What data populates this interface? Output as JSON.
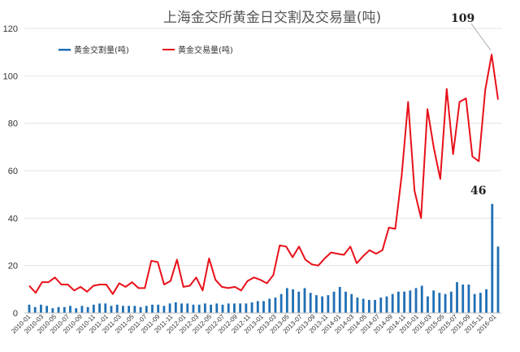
{
  "chart_data": {
    "type": "bar+line",
    "title": "上海金交所黄金日交割及交易量(吨)",
    "ylim": [
      0,
      120
    ],
    "yticks": [
      0,
      20,
      40,
      60,
      80,
      100,
      120
    ],
    "grid": "horizontal",
    "legend_position": "top-left",
    "x_tick_labels": [
      "2010-01",
      "2010-03",
      "2010-05",
      "2010-07",
      "2010-09",
      "2010-11",
      "2011-01",
      "2011-03",
      "2011-05",
      "2011-07",
      "2011-09",
      "2011-11",
      "2012-01",
      "2012-03",
      "2012-05",
      "2012-07",
      "2012-09",
      "2012-11",
      "2013-01",
      "2013-03",
      "2013-05",
      "2013-07",
      "2013-09",
      "2013-11",
      "2014-01",
      "2014-03",
      "2014-05",
      "2014-07",
      "2014-09",
      "2014-11",
      "2015-01",
      "2015-03",
      "2015-05",
      "2015-07",
      "2015-09",
      "2015-11",
      "2016-01"
    ],
    "series": [
      {
        "name": "黄金交割量(吨)",
        "kind": "bar",
        "color": "#1f6fb4",
        "values": [
          3.5,
          2.5,
          3.5,
          3.0,
          2.0,
          2.5,
          2.5,
          3.0,
          2.0,
          3.0,
          2.5,
          3.5,
          4.0,
          4.0,
          3.0,
          3.5,
          3.0,
          3.0,
          3.0,
          2.5,
          3.0,
          3.5,
          3.5,
          3.0,
          4.0,
          4.5,
          4.0,
          4.0,
          3.5,
          3.5,
          4.0,
          3.5,
          4.0,
          3.5,
          4.0,
          4.0,
          4.0,
          4.0,
          4.5,
          5.0,
          5.0,
          6.0,
          6.5,
          8.0,
          10.5,
          10.0,
          9.0,
          10.5,
          8.5,
          7.5,
          7.0,
          7.5,
          9.0,
          11.0,
          9.0,
          8.0,
          6.5,
          6.0,
          5.5,
          5.5,
          6.5,
          7.0,
          8.0,
          9.0,
          9.0,
          9.5,
          10.5,
          11.5,
          7.0,
          9.5,
          8.5,
          8.0,
          9.0,
          13.0,
          12.0,
          12.0,
          8.0,
          8.5,
          10.0,
          46.0,
          28.0
        ]
      },
      {
        "name": "黄金交易量(吨)",
        "kind": "line",
        "color": "#e8101a",
        "values": [
          11.5,
          8.5,
          13.0,
          13.0,
          15.0,
          12.0,
          12.0,
          9.5,
          11.0,
          9.0,
          11.5,
          12.0,
          12.0,
          8.0,
          12.5,
          11.0,
          13.0,
          10.5,
          10.5,
          22.0,
          21.5,
          12.0,
          13.5,
          22.5,
          11.0,
          11.5,
          15.0,
          9.5,
          23.0,
          14.0,
          11.0,
          10.5,
          11.0,
          9.5,
          13.5,
          15.0,
          14.0,
          12.5,
          16.0,
          28.5,
          28.0,
          23.5,
          28.0,
          22.5,
          20.5,
          20.0,
          23.0,
          25.5,
          25.0,
          24.5,
          28.0,
          21.0,
          24.0,
          26.5,
          25.0,
          26.5,
          36.0,
          35.5,
          58.0,
          89.0,
          51.5,
          40.0,
          86.0,
          69.5,
          56.5,
          94.5,
          67.0,
          89.0,
          90.5,
          66.0,
          64.0,
          94.0,
          109.0,
          90.0
        ]
      }
    ],
    "annotations": [
      {
        "text": "109"
      },
      {
        "text": "46"
      }
    ]
  }
}
